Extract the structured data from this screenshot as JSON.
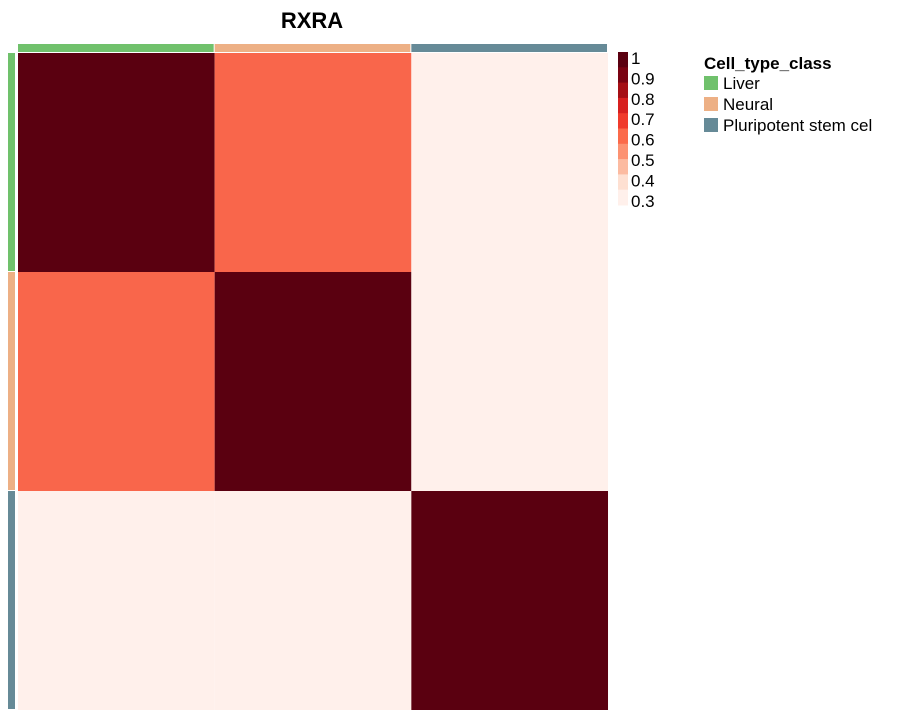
{
  "chart_data": {
    "type": "heatmap",
    "title": "RXRA",
    "rows": [
      "Liver",
      "Neural",
      "Pluripotent stem cel"
    ],
    "columns": [
      "Liver",
      "Neural",
      "Pluripotent stem cel"
    ],
    "values": [
      [
        1.0,
        0.6,
        0.3
      ],
      [
        0.6,
        1.0,
        0.3
      ],
      [
        0.3,
        0.3,
        1.0
      ]
    ],
    "row_annotation": [
      "Liver",
      "Neural",
      "Pluripotent stem cel"
    ],
    "col_annotation": [
      "Liver",
      "Neural",
      "Pluripotent stem cel"
    ],
    "color_scale": {
      "ticks": [
        "1",
        "0.9",
        "0.8",
        "0.7",
        "0.6",
        "0.5",
        "0.4",
        "0.3"
      ],
      "colors": [
        "#5a0010",
        "#7a0312",
        "#a50f15",
        "#d7201f",
        "#f03b2c",
        "#fb6a4a",
        "#fc9272",
        "#fcbba1",
        "#fee0d2",
        "#fff0eb"
      ],
      "range": [
        0.3,
        1.0
      ]
    },
    "cell_colors": {
      "1.0": "#5a0010",
      "0.6": "#f9664b",
      "0.3": "#fff0eb"
    },
    "legend": {
      "title": "Cell_type_class",
      "placement": "top-right",
      "items": [
        {
          "label": "Liver",
          "color": "#70c16c"
        },
        {
          "label": "Neural",
          "color": "#edb085"
        },
        {
          "label": "Pluripotent stem cel",
          "color": "#668a97"
        }
      ]
    }
  }
}
